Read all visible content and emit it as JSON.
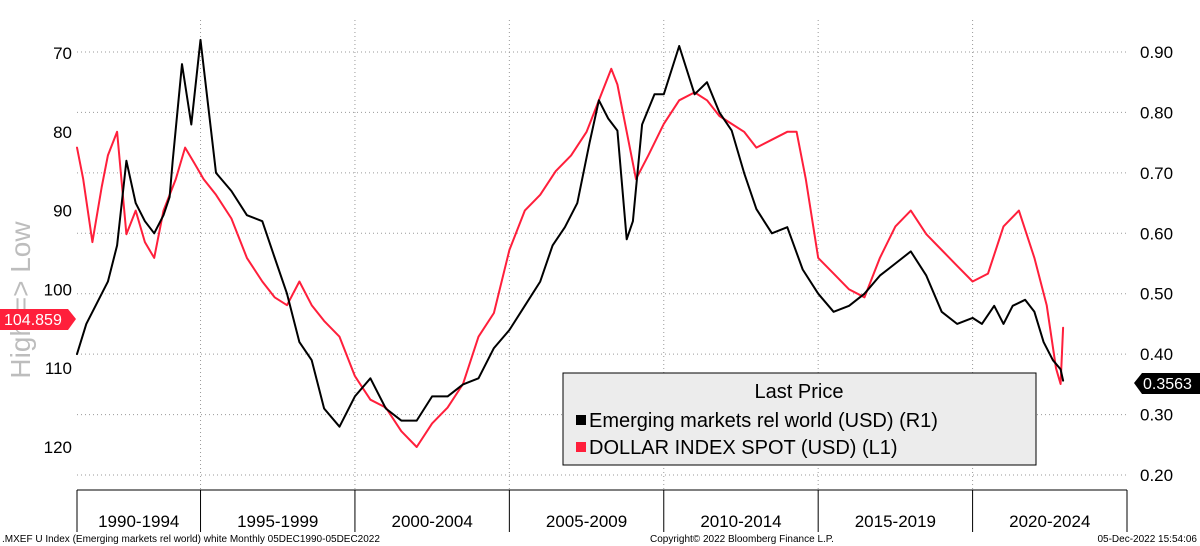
{
  "chart_data": {
    "type": "line",
    "vertical_axis_label": "High => Low",
    "left_axis": {
      "ticks": [
        "70",
        "80",
        "90",
        "100",
        "110",
        "120"
      ],
      "range": [
        65,
        124
      ],
      "inverted": true
    },
    "right_axis": {
      "ticks": [
        "0.90",
        "0.80",
        "0.70",
        "0.60",
        "0.50",
        "0.40",
        "0.30",
        "0.20"
      ],
      "range": [
        0.17,
        0.96
      ]
    },
    "x_axis": {
      "tick_labels": [
        "1990-1994",
        "1995-1999",
        "2000-2004",
        "2005-2009",
        "2010-2014",
        "2015-2019",
        "2020-2024"
      ],
      "range": [
        1991.0,
        2025.0
      ]
    },
    "legend": {
      "title": "Last Price",
      "items": [
        "Emerging markets rel world (USD)  (R1)",
        "DOLLAR INDEX SPOT (USD)  (L1)"
      ],
      "placement": "bottom-right"
    },
    "tags": {
      "left": "104.859",
      "right": "0.3563"
    },
    "grid": true,
    "series": [
      {
        "name": "Emerging markets rel world (USD)  (R1)",
        "axis": "right",
        "color": "#000000",
        "x": [
          1991.0,
          1991.3,
          1991.7,
          1992.0,
          1992.3,
          1992.6,
          1992.9,
          1993.2,
          1993.5,
          1993.8,
          1994.0,
          1994.1,
          1994.4,
          1994.7,
          1995.0,
          1995.5,
          1996.0,
          1996.5,
          1997.0,
          1997.4,
          1997.8,
          1998.2,
          1998.6,
          1999.0,
          1999.5,
          2000.0,
          2000.5,
          2001.0,
          2001.5,
          2002.0,
          2002.5,
          2003.0,
          2003.5,
          2004.0,
          2004.5,
          2005.0,
          2005.5,
          2006.0,
          2006.4,
          2006.8,
          2007.2,
          2007.6,
          2007.9,
          2008.2,
          2008.5,
          2008.8,
          2009.0,
          2009.3,
          2009.7,
          2010.0,
          2010.5,
          2011.0,
          2011.4,
          2011.8,
          2012.2,
          2012.6,
          2013.0,
          2013.5,
          2014.0,
          2014.5,
          2015.0,
          2015.5,
          2016.0,
          2016.5,
          2017.0,
          2017.5,
          2018.0,
          2018.5,
          2019.0,
          2019.5,
          2020.0,
          2020.3,
          2020.7,
          2021.0,
          2021.3,
          2021.7,
          2022.0,
          2022.3,
          2022.6,
          2022.85,
          2022.93
        ],
        "values": [
          0.4,
          0.45,
          0.49,
          0.52,
          0.58,
          0.72,
          0.65,
          0.62,
          0.6,
          0.63,
          0.66,
          0.72,
          0.88,
          0.78,
          0.92,
          0.7,
          0.67,
          0.63,
          0.62,
          0.56,
          0.5,
          0.42,
          0.39,
          0.31,
          0.28,
          0.33,
          0.36,
          0.31,
          0.29,
          0.29,
          0.33,
          0.33,
          0.35,
          0.36,
          0.41,
          0.44,
          0.48,
          0.52,
          0.58,
          0.61,
          0.65,
          0.75,
          0.82,
          0.79,
          0.77,
          0.59,
          0.62,
          0.78,
          0.83,
          0.83,
          0.91,
          0.83,
          0.85,
          0.8,
          0.77,
          0.7,
          0.64,
          0.6,
          0.61,
          0.54,
          0.5,
          0.47,
          0.48,
          0.5,
          0.53,
          0.55,
          0.57,
          0.53,
          0.47,
          0.45,
          0.46,
          0.45,
          0.48,
          0.45,
          0.48,
          0.49,
          0.47,
          0.42,
          0.39,
          0.375,
          0.3563
        ]
      },
      {
        "name": "DOLLAR INDEX SPOT (USD)  (L1)",
        "axis": "left",
        "color": "#ff1f3b",
        "x": [
          1991.0,
          1991.2,
          1991.5,
          1991.8,
          1992.0,
          1992.3,
          1992.6,
          1992.9,
          1993.2,
          1993.5,
          1993.8,
          1994.2,
          1994.5,
          1994.8,
          1995.1,
          1995.5,
          1996.0,
          1996.5,
          1997.0,
          1997.4,
          1997.8,
          1998.2,
          1998.6,
          1999.0,
          1999.5,
          2000.0,
          2000.5,
          2001.0,
          2001.5,
          2002.0,
          2002.5,
          2003.0,
          2003.5,
          2004.0,
          2004.5,
          2005.0,
          2005.5,
          2006.0,
          2006.5,
          2007.0,
          2007.5,
          2008.0,
          2008.3,
          2008.5,
          2008.8,
          2009.1,
          2009.5,
          2010.0,
          2010.5,
          2011.0,
          2011.4,
          2011.8,
          2012.2,
          2012.6,
          2013.0,
          2013.5,
          2014.0,
          2014.3,
          2014.6,
          2015.0,
          2015.5,
          2016.0,
          2016.5,
          2017.0,
          2017.5,
          2018.0,
          2018.5,
          2019.0,
          2019.5,
          2020.0,
          2020.5,
          2021.0,
          2021.5,
          2022.0,
          2022.4,
          2022.7,
          2022.85,
          2022.93
        ],
        "values": [
          82.0,
          86.0,
          94.0,
          87.0,
          83.0,
          80.0,
          93.0,
          90.0,
          94.0,
          96.0,
          90.0,
          86.0,
          82.0,
          84.0,
          86.0,
          88.0,
          91.0,
          96.0,
          99.0,
          101.0,
          102.0,
          99.0,
          102.0,
          104.0,
          106.0,
          111.0,
          114.0,
          115.0,
          118.0,
          120.0,
          117.0,
          115.0,
          112.0,
          106.0,
          103.0,
          95.0,
          90.0,
          88.0,
          85.0,
          83.0,
          80.0,
          75.0,
          72.0,
          74.0,
          80.0,
          86.0,
          83.0,
          79.0,
          76.0,
          75.0,
          76.0,
          78.0,
          79.0,
          80.0,
          82.0,
          81.0,
          80.0,
          80.0,
          86.0,
          96.0,
          98.0,
          100.0,
          101.0,
          96.0,
          92.0,
          90.0,
          93.0,
          95.0,
          97.0,
          99.0,
          98.0,
          92.0,
          90.0,
          96.0,
          102.0,
          110.0,
          112.0,
          104.859
        ]
      }
    ]
  },
  "footer": {
    "left": ".MXEF U Index (Emerging markets rel world) white  Monthly 05DEC1990-05DEC2022",
    "center": "Copyright© 2022 Bloomberg Finance L.P.",
    "right": "05-Dec-2022 15:54:06"
  }
}
